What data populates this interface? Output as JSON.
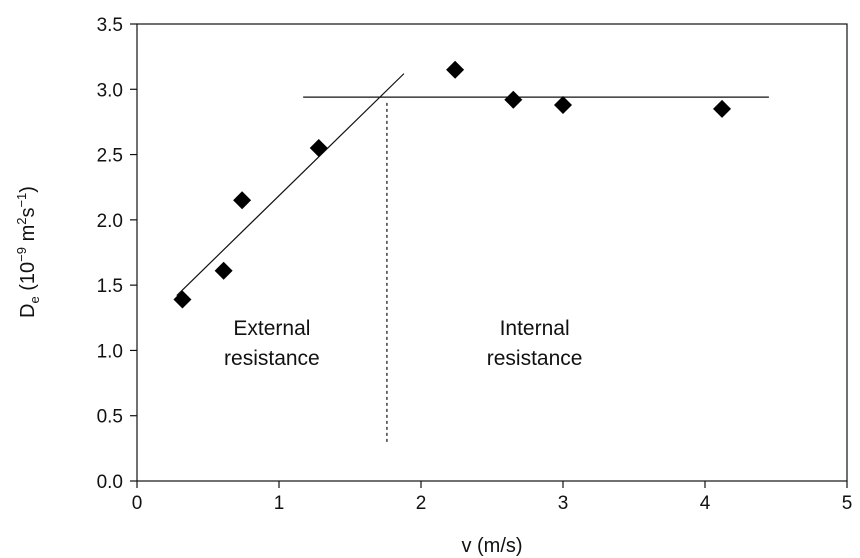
{
  "chart_data": {
    "type": "scatter",
    "title": "",
    "xlabel": "v (m/s)",
    "ylabel": {
      "base": "D",
      "sub": "e",
      "open": " (10",
      "exp1": "−9",
      "mid": " m",
      "exp2": "2",
      "mid2": "s",
      "exp3": "−1",
      "close": ")"
    },
    "xlim": [
      0,
      5
    ],
    "ylim": [
      0,
      3.5
    ],
    "x_ticks": [
      "0",
      "1",
      "2",
      "3",
      "4",
      "5"
    ],
    "y_ticks": [
      "0.0",
      "0.5",
      "1.0",
      "1.5",
      "2.0",
      "2.5",
      "3.0",
      "3.5"
    ],
    "grid": false,
    "legend": "none",
    "series": [
      {
        "marker": "diamond",
        "color": "#000000",
        "points": [
          {
            "x": 0.32,
            "y": 1.39
          },
          {
            "x": 0.61,
            "y": 1.61
          },
          {
            "x": 0.74,
            "y": 2.15
          },
          {
            "x": 1.28,
            "y": 2.55
          },
          {
            "x": 2.24,
            "y": 3.15
          },
          {
            "x": 2.65,
            "y": 2.92
          },
          {
            "x": 3.0,
            "y": 2.88
          },
          {
            "x": 4.12,
            "y": 2.85
          }
        ]
      }
    ],
    "reference_lines": [
      {
        "style": "solid",
        "from": {
          "x": 0.28,
          "y": 1.42
        },
        "to": {
          "x": 1.88,
          "y": 3.12
        }
      },
      {
        "style": "solid",
        "from": {
          "x": 1.17,
          "y": 2.94
        },
        "to": {
          "x": 4.45,
          "y": 2.94
        }
      },
      {
        "style": "dashed",
        "from": {
          "x": 1.76,
          "y": 0.3
        },
        "to": {
          "x": 1.76,
          "y": 2.9
        }
      }
    ],
    "annotations": [
      {
        "lines": [
          "External",
          "resistance"
        ],
        "x": 0.95,
        "y": 0.95
      },
      {
        "lines": [
          "Internal",
          "resistance"
        ],
        "x": 2.8,
        "y": 0.95
      }
    ]
  }
}
